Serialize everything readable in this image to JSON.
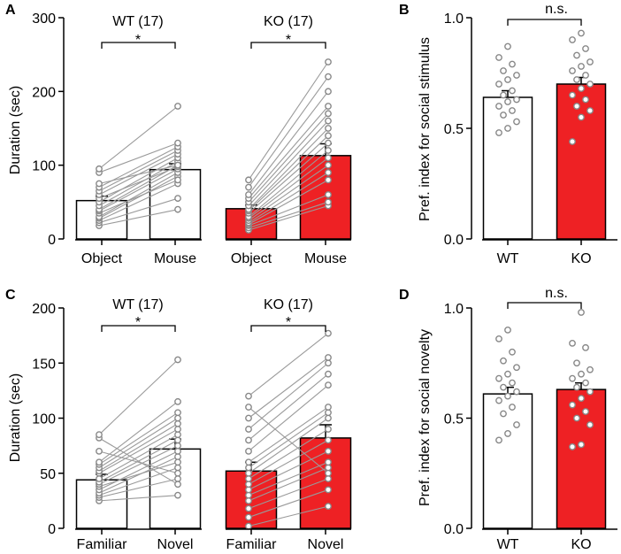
{
  "colors": {
    "wt_fill": "#ffffff",
    "ko_fill": "#ee2124",
    "point_stroke": "#888888",
    "line_gray": "#9a9a9a",
    "axis": "#000000"
  },
  "chart_data": [
    {
      "panel": "A",
      "type": "bar",
      "ylabel": "Duration (sec)",
      "ylim": [
        0,
        300
      ],
      "yticks": [
        0,
        100,
        200,
        300
      ],
      "groups": [
        {
          "title": "WT (17)",
          "sig": "*",
          "fill": "wt",
          "categories": [
            "Object",
            "Mouse"
          ],
          "means": [
            52,
            94
          ],
          "sems": [
            6,
            8
          ],
          "pairs": [
            [
              18,
              40
            ],
            [
              22,
              55
            ],
            [
              25,
              75
            ],
            [
              28,
              85
            ],
            [
              30,
              90
            ],
            [
              35,
              80
            ],
            [
              38,
              95
            ],
            [
              40,
              100
            ],
            [
              45,
              105
            ],
            [
              50,
              110
            ],
            [
              55,
              98
            ],
            [
              60,
              115
            ],
            [
              65,
              120
            ],
            [
              70,
              125
            ],
            [
              75,
              100
            ],
            [
              90,
              130
            ],
            [
              95,
              180
            ]
          ]
        },
        {
          "title": "KO (17)",
          "sig": "*",
          "fill": "ko",
          "categories": [
            "Object",
            "Mouse"
          ],
          "means": [
            41,
            113
          ],
          "sems": [
            5,
            16
          ],
          "pairs": [
            [
              12,
              45
            ],
            [
              15,
              50
            ],
            [
              18,
              60
            ],
            [
              20,
              80
            ],
            [
              22,
              90
            ],
            [
              25,
              100
            ],
            [
              28,
              110
            ],
            [
              30,
              120
            ],
            [
              35,
              130
            ],
            [
              38,
              140
            ],
            [
              40,
              150
            ],
            [
              45,
              160
            ],
            [
              50,
              170
            ],
            [
              55,
              180
            ],
            [
              60,
              200
            ],
            [
              70,
              220
            ],
            [
              80,
              240
            ]
          ]
        }
      ]
    },
    {
      "panel": "B",
      "type": "bar",
      "ylabel": "Pref. index for social stimulus",
      "ylim": [
        0,
        1
      ],
      "yticks": [
        "0.0",
        "0.5",
        "1.0"
      ],
      "sig": "n.s.",
      "categories": [
        "WT",
        "KO"
      ],
      "means": [
        0.64,
        0.7
      ],
      "sems": [
        0.03,
        0.03
      ],
      "points": [
        [
          0.48,
          0.5,
          0.53,
          0.56,
          0.58,
          0.6,
          0.62,
          0.63,
          0.65,
          0.67,
          0.7,
          0.72,
          0.74,
          0.76,
          0.79,
          0.82,
          0.87
        ],
        [
          0.44,
          0.55,
          0.58,
          0.6,
          0.63,
          0.65,
          0.68,
          0.7,
          0.72,
          0.74,
          0.76,
          0.78,
          0.8,
          0.83,
          0.86,
          0.9,
          0.93
        ]
      ]
    },
    {
      "panel": "C",
      "type": "bar",
      "ylabel": "Duration (sec)",
      "ylim": [
        0,
        200
      ],
      "yticks": [
        0,
        50,
        100,
        150,
        200
      ],
      "groups": [
        {
          "title": "WT (17)",
          "sig": "*",
          "fill": "wt",
          "categories": [
            "Familiar",
            "Novel"
          ],
          "means": [
            44,
            72
          ],
          "sems": [
            5,
            9
          ],
          "pairs": [
            [
              25,
              30
            ],
            [
              28,
              45
            ],
            [
              30,
              55
            ],
            [
              32,
              65
            ],
            [
              35,
              70
            ],
            [
              38,
              60
            ],
            [
              40,
              75
            ],
            [
              42,
              80
            ],
            [
              45,
              85
            ],
            [
              50,
              90
            ],
            [
              52,
              95
            ],
            [
              55,
              100
            ],
            [
              58,
              105
            ],
            [
              60,
              115
            ],
            [
              70,
              50
            ],
            [
              82,
              40
            ],
            [
              85,
              153
            ]
          ]
        },
        {
          "title": "KO (17)",
          "sig": "*",
          "fill": "ko",
          "categories": [
            "Familiar",
            "Novel"
          ],
          "means": [
            52,
            82
          ],
          "sems": [
            8,
            12
          ],
          "pairs": [
            [
              2,
              20
            ],
            [
              10,
              35
            ],
            [
              18,
              45
            ],
            [
              25,
              55
            ],
            [
              30,
              60
            ],
            [
              35,
              70
            ],
            [
              40,
              80
            ],
            [
              45,
              90
            ],
            [
              50,
              100
            ],
            [
              55,
              105
            ],
            [
              60,
              110
            ],
            [
              70,
              130
            ],
            [
              80,
              140
            ],
            [
              90,
              150
            ],
            [
              100,
              155
            ],
            [
              110,
              50
            ],
            [
              120,
              177
            ]
          ]
        }
      ]
    },
    {
      "panel": "D",
      "type": "bar",
      "ylabel": "Pref. index for social novelty",
      "ylim": [
        0,
        1
      ],
      "yticks": [
        "0.0",
        "0.5",
        "1.0"
      ],
      "sig": "n.s.",
      "categories": [
        "WT",
        "KO"
      ],
      "means": [
        0.61,
        0.63
      ],
      "sems": [
        0.03,
        0.03
      ],
      "points": [
        [
          0.4,
          0.43,
          0.47,
          0.52,
          0.55,
          0.58,
          0.6,
          0.62,
          0.64,
          0.66,
          0.68,
          0.7,
          0.73,
          0.76,
          0.8,
          0.86,
          0.9
        ],
        [
          0.37,
          0.38,
          0.47,
          0.5,
          0.53,
          0.56,
          0.59,
          0.62,
          0.64,
          0.66,
          0.68,
          0.7,
          0.72,
          0.75,
          0.82,
          0.84,
          0.98
        ]
      ]
    }
  ]
}
